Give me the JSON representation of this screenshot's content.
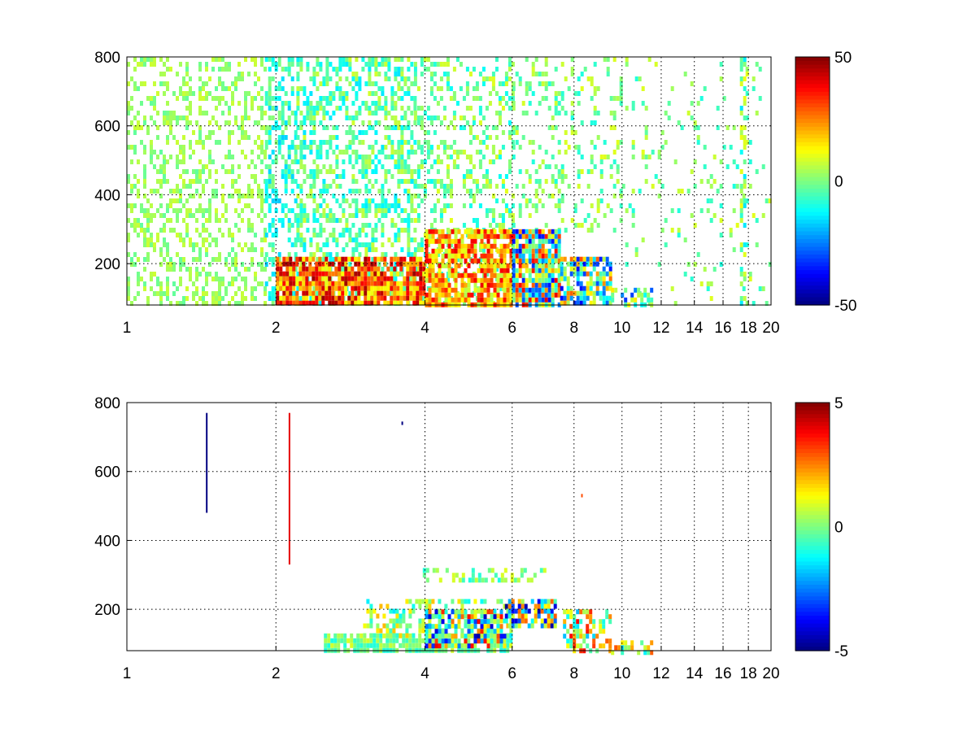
{
  "chart_data": [
    {
      "type": "heatmap",
      "title": "",
      "xlabel": "",
      "ylabel": "",
      "xlim": [
        1,
        20
      ],
      "ylim": [
        80,
        800
      ],
      "x_scale": "log",
      "x_ticks": [
        "1",
        "2",
        "4",
        "6",
        "8",
        "10",
        "12",
        "14",
        "16",
        "18",
        "20"
      ],
      "y_ticks": [
        "200",
        "400",
        "600",
        "800"
      ],
      "grid": true,
      "colormap": "jet",
      "clim": [
        -50,
        50
      ],
      "colorbar_ticks": [
        "50",
        "0",
        "-50"
      ],
      "regions": [
        {
          "x": [
            1.0,
            1.9
          ],
          "y": [
            80,
            800
          ],
          "density": 0.35,
          "value": [
            -3,
            8
          ]
        },
        {
          "x": [
            1.9,
            2.2
          ],
          "y": [
            80,
            800
          ],
          "density": 0.45,
          "value": [
            -18,
            2
          ]
        },
        {
          "x": [
            2.2,
            3.8
          ],
          "y": [
            80,
            800
          ],
          "density": 0.45,
          "value": [
            -15,
            8
          ]
        },
        {
          "x": [
            3.8,
            6.0
          ],
          "y": [
            80,
            800
          ],
          "density": 0.3,
          "value": [
            -12,
            10
          ]
        },
        {
          "x": [
            6.0,
            10.0
          ],
          "y": [
            300,
            800
          ],
          "density": 0.2,
          "value": [
            -10,
            10
          ]
        },
        {
          "x": [
            10.0,
            20.0
          ],
          "y": [
            80,
            800
          ],
          "density": 0.07,
          "value": [
            -10,
            10
          ]
        },
        {
          "x": [
            17.3,
            17.6
          ],
          "y": [
            80,
            800
          ],
          "density": 0.5,
          "value": [
            -15,
            12
          ]
        },
        {
          "x": [
            2.0,
            4.0
          ],
          "y": [
            80,
            220
          ],
          "density": 0.85,
          "value": [
            10,
            48
          ]
        },
        {
          "x": [
            4.0,
            6.0
          ],
          "y": [
            80,
            300
          ],
          "density": 0.8,
          "value": [
            5,
            40
          ]
        },
        {
          "x": [
            6.0,
            7.5
          ],
          "y": [
            80,
            300
          ],
          "density": 0.85,
          "value": [
            -40,
            40
          ]
        },
        {
          "x": [
            7.5,
            9.5
          ],
          "y": [
            80,
            220
          ],
          "density": 0.75,
          "value": [
            -40,
            30
          ]
        },
        {
          "x": [
            9.5,
            11.5
          ],
          "y": [
            80,
            130
          ],
          "density": 0.55,
          "value": [
            -35,
            15
          ]
        }
      ]
    },
    {
      "type": "heatmap",
      "title": "",
      "xlabel": "",
      "ylabel": "",
      "xlim": [
        1,
        20
      ],
      "ylim": [
        80,
        800
      ],
      "x_scale": "log",
      "x_ticks": [
        "1",
        "2",
        "4",
        "6",
        "8",
        "10",
        "12",
        "14",
        "16",
        "18",
        "20"
      ],
      "y_ticks": [
        "200",
        "400",
        "600",
        "800"
      ],
      "grid": true,
      "colormap": "jet",
      "clim": [
        -5,
        5
      ],
      "colorbar_ticks": [
        "5",
        "0",
        "-5"
      ],
      "lines": [
        {
          "x": 1.45,
          "y": [
            480,
            770
          ],
          "value": -5
        },
        {
          "x": 2.13,
          "y": [
            330,
            770
          ],
          "value": 4
        },
        {
          "x": 3.6,
          "y": [
            735,
            745
          ],
          "value": -5
        },
        {
          "x": 8.3,
          "y": [
            525,
            535
          ],
          "value": 3
        }
      ],
      "regions": [
        {
          "x": [
            2.5,
            6.0
          ],
          "y": [
            80,
            130
          ],
          "density": 0.85,
          "value": [
            -1,
            1
          ]
        },
        {
          "x": [
            3.0,
            6.0
          ],
          "y": [
            130,
            230
          ],
          "density": 0.4,
          "value": [
            -1.5,
            2
          ]
        },
        {
          "x": [
            4.0,
            5.8
          ],
          "y": [
            100,
            200
          ],
          "density": 0.5,
          "value": [
            -5,
            4
          ]
        },
        {
          "x": [
            3.9,
            7.0
          ],
          "y": [
            290,
            320
          ],
          "density": 0.25,
          "value": [
            -1,
            1
          ]
        },
        {
          "x": [
            5.8,
            7.3
          ],
          "y": [
            150,
            230
          ],
          "density": 0.7,
          "value": [
            -5,
            3
          ]
        },
        {
          "x": [
            7.6,
            9.5
          ],
          "y": [
            80,
            200
          ],
          "density": 0.55,
          "value": [
            -2,
            4
          ]
        },
        {
          "x": [
            9.5,
            11.5
          ],
          "y": [
            80,
            110
          ],
          "density": 0.4,
          "value": [
            -2,
            3
          ]
        }
      ]
    }
  ]
}
